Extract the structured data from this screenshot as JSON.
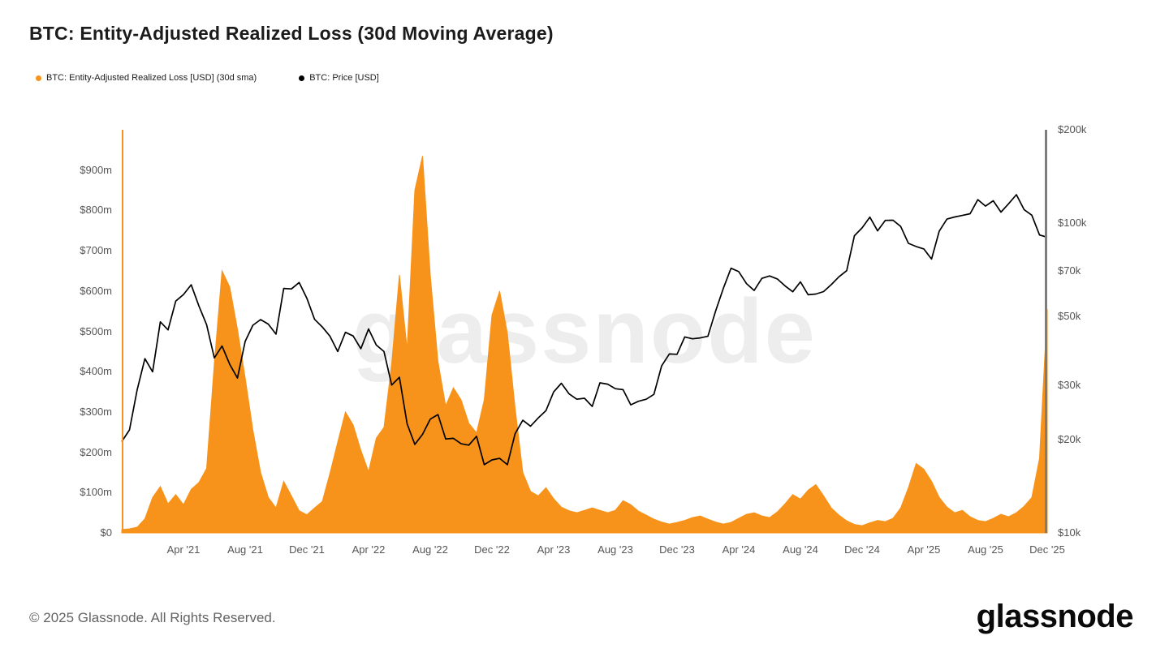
{
  "title": "BTC: Entity-Adjusted Realized Loss (30d Moving Average)",
  "watermark": "glassnode",
  "footer": {
    "copyright": "© 2025 Glassnode. All Rights Reserved.",
    "logo": "glassnode"
  },
  "colors": {
    "loss_orange": "#f7931a",
    "price_black": "#000000",
    "right_axis_line": "#7d7d7d"
  },
  "chart_data": {
    "type": "area+line",
    "x_unit": "months since Dec 2020 (t=4 is Apr 2021)",
    "t_min": 0,
    "t_max": 60,
    "t_start": 0,
    "t_step": 0.5,
    "grid": "off",
    "legend_position": "top-left",
    "x_ticks": [
      {
        "label": "Apr '21",
        "t": 4
      },
      {
        "label": "Aug '21",
        "t": 8
      },
      {
        "label": "Dec '21",
        "t": 12
      },
      {
        "label": "Apr '22",
        "t": 16
      },
      {
        "label": "Aug '22",
        "t": 20
      },
      {
        "label": "Dec '22",
        "t": 24
      },
      {
        "label": "Apr '23",
        "t": 28
      },
      {
        "label": "Aug '23",
        "t": 32
      },
      {
        "label": "Dec '23",
        "t": 36
      },
      {
        "label": "Apr '24",
        "t": 40
      },
      {
        "label": "Aug '24",
        "t": 44
      },
      {
        "label": "Dec '24",
        "t": 48
      },
      {
        "label": "Apr '25",
        "t": 52
      },
      {
        "label": "Aug '25",
        "t": 56
      },
      {
        "label": "Dec '25",
        "t": 60
      }
    ],
    "left_axis": {
      "unit": "USD millions",
      "scale": "linear",
      "min": 0,
      "max": 1000,
      "ticks": [
        {
          "label": "$0",
          "value": 0
        },
        {
          "label": "$100m",
          "value": 100
        },
        {
          "label": "$200m",
          "value": 200
        },
        {
          "label": "$300m",
          "value": 300
        },
        {
          "label": "$400m",
          "value": 400
        },
        {
          "label": "$500m",
          "value": 500
        },
        {
          "label": "$600m",
          "value": 600
        },
        {
          "label": "$700m",
          "value": 700
        },
        {
          "label": "$800m",
          "value": 800
        },
        {
          "label": "$900m",
          "value": 900
        }
      ]
    },
    "right_axis": {
      "unit": "USD",
      "scale": "log",
      "min": 10000,
      "max": 200000,
      "ticks": [
        {
          "label": "$200k",
          "value": 200000
        },
        {
          "label": "$100k",
          "value": 100000
        },
        {
          "label": "$70k",
          "value": 70000
        },
        {
          "label": "$50k",
          "value": 50000
        },
        {
          "label": "$30k",
          "value": 30000
        },
        {
          "label": "$20k",
          "value": 20000
        },
        {
          "label": "$10k",
          "value": 10000
        }
      ]
    },
    "series": [
      {
        "name": "BTC: Entity-Adjusted Realized Loss [USD] (30d sma)",
        "type": "area",
        "axis": "left",
        "color": "#f7931a",
        "unit": "USD millions",
        "values": [
          8,
          10,
          14,
          35,
          88,
          115,
          72,
          95,
          70,
          108,
          125,
          160,
          420,
          650,
          610,
          505,
          385,
          255,
          150,
          88,
          62,
          128,
          92,
          55,
          45,
          62,
          78,
          148,
          225,
          300,
          268,
          205,
          152,
          235,
          262,
          420,
          640,
          455,
          850,
          935,
          640,
          425,
          315,
          360,
          330,
          272,
          248,
          330,
          540,
          600,
          495,
          310,
          150,
          103,
          92,
          112,
          85,
          64,
          55,
          50,
          56,
          62,
          56,
          50,
          56,
          80,
          70,
          54,
          44,
          34,
          27,
          22,
          26,
          31,
          38,
          42,
          34,
          27,
          22,
          26,
          36,
          46,
          50,
          42,
          38,
          52,
          72,
          95,
          84,
          106,
          120,
          92,
          62,
          44,
          30,
          21,
          18,
          25,
          31,
          28,
          36,
          62,
          112,
          172,
          158,
          128,
          88,
          64,
          50,
          56,
          40,
          31,
          28,
          36,
          46,
          40,
          50,
          66,
          88,
          185,
          555
        ]
      },
      {
        "name": "BTC: Price [USD]",
        "type": "line",
        "axis": "right",
        "color": "#000000",
        "unit": "USD",
        "values": [
          19700,
          21500,
          29000,
          36500,
          33100,
          48000,
          45200,
          56000,
          58800,
          63200,
          54000,
          47000,
          36700,
          40100,
          35000,
          31600,
          41500,
          46800,
          48800,
          47200,
          43800,
          61500,
          61300,
          64300,
          57200,
          48900,
          46200,
          43100,
          38500,
          44400,
          43200,
          39300,
          45500,
          40400,
          38500,
          30000,
          31800,
          22500,
          19300,
          20800,
          23300,
          24100,
          20100,
          20200,
          19400,
          19200,
          20500,
          16600,
          17200,
          17400,
          16600,
          20900,
          23100,
          22100,
          23500,
          24800,
          28500,
          30400,
          28100,
          27000,
          27200,
          25600,
          30500,
          30200,
          29200,
          29000,
          25900,
          26600,
          27000,
          28000,
          34600,
          37800,
          37700,
          42900,
          42300,
          42600,
          43100,
          52000,
          61500,
          71500,
          69700,
          63800,
          60600,
          66300,
          67500,
          66000,
          62700,
          60000,
          64600,
          58700,
          59000,
          60100,
          63300,
          67100,
          70200,
          91000,
          96500,
          104500,
          94400,
          102000,
          102100,
          97500,
          86000,
          84000,
          82500,
          76500,
          94200,
          103000,
          104600,
          105800,
          107200,
          119000,
          113400,
          118000,
          108500,
          115500,
          123500,
          110500,
          106000,
          91500,
          90000
        ]
      }
    ]
  }
}
